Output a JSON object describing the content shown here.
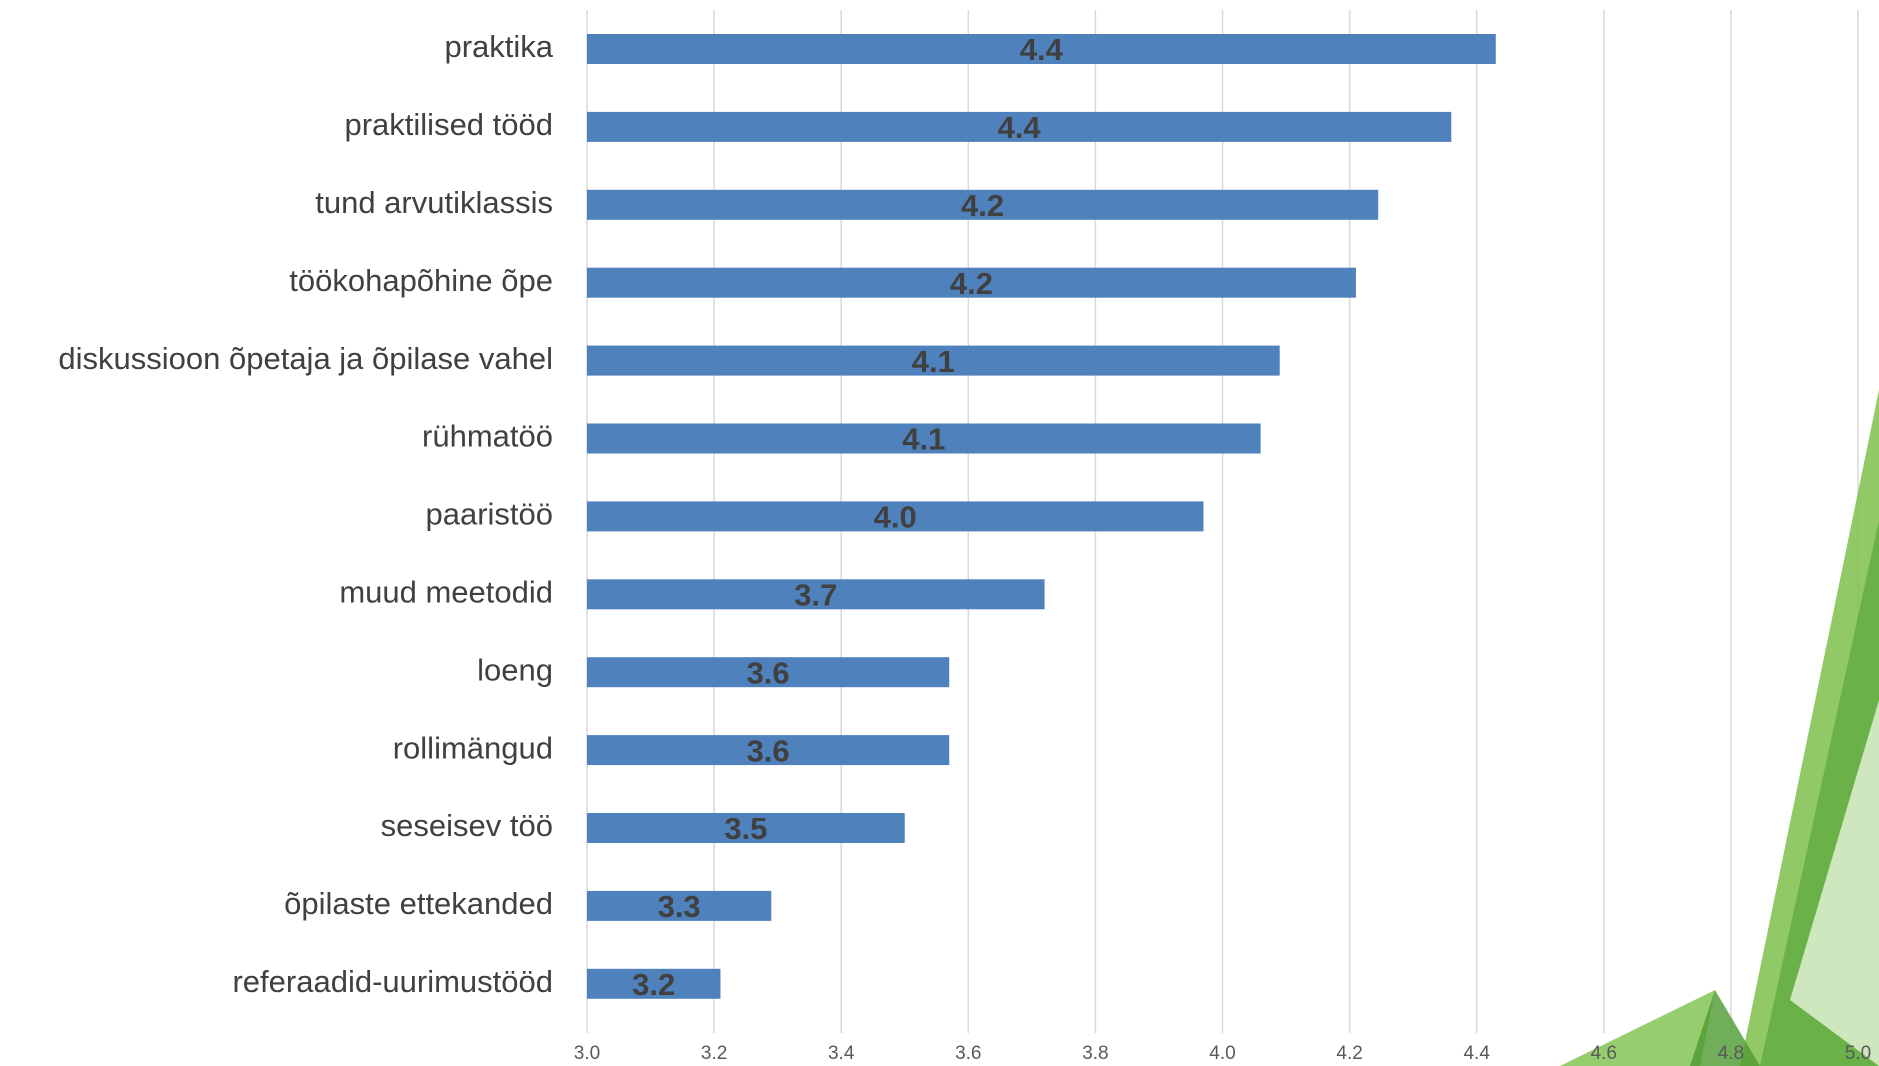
{
  "chart_data": {
    "type": "bar",
    "orientation": "horizontal",
    "categories": [
      "praktika",
      "praktilised tööd",
      "tund arvutiklassis",
      "töökohapõhine õpe",
      "diskussioon õpetaja ja õpilase vahel",
      "rühmatöö",
      "paaristöö",
      "muud meetodid",
      "loeng",
      "rollimängud",
      "seseisev töö",
      "õpilaste ettekanded",
      "referaadid-uurimustööd"
    ],
    "values": [
      4.43,
      4.36,
      4.245,
      4.21,
      4.09,
      4.06,
      3.97,
      3.72,
      3.57,
      3.57,
      3.5,
      3.29,
      3.21
    ],
    "value_labels": [
      "4.4",
      "4.4",
      "4.2",
      "4.2",
      "4.1",
      "4.1",
      "4.0",
      "3.7",
      "3.6",
      "3.6",
      "3.5",
      "3.3",
      "3.2"
    ],
    "color": "#4f81bd",
    "xlim": [
      3,
      5
    ],
    "xticks": [
      {
        "value": 3,
        "label": "3.0"
      },
      3.2,
      3.4,
      3.6,
      3.8,
      {
        "value": 4,
        "label": "4.0"
      },
      4.2,
      4.4,
      4.6,
      4.8,
      {
        "value": 5,
        "label": "5.0"
      }
    ],
    "grid": true
  }
}
